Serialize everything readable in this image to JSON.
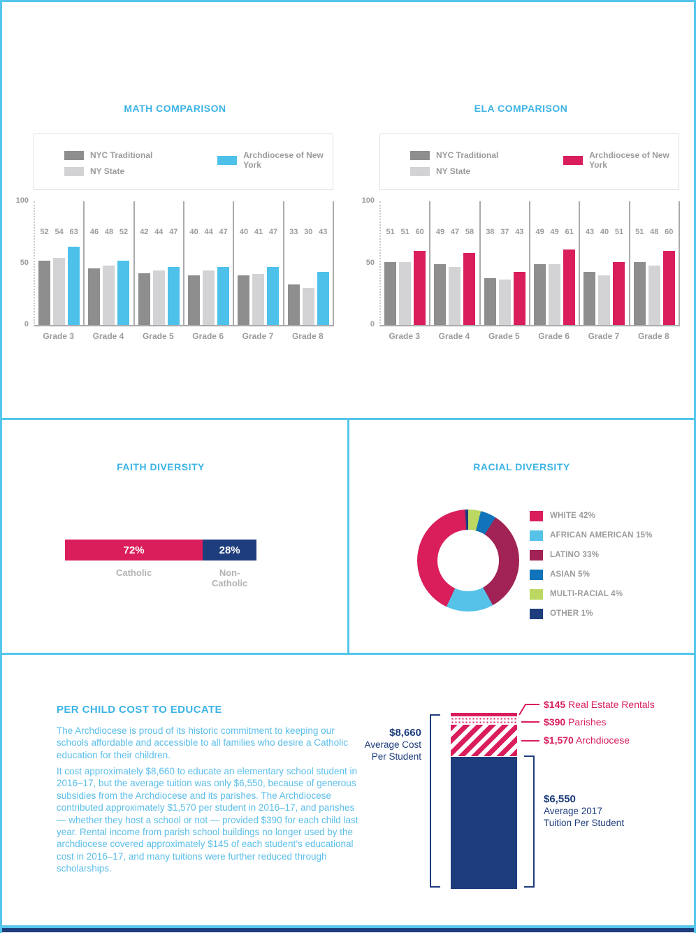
{
  "palette": {
    "border_blue": "#56C5EC",
    "title_blue": "#3CB4E5",
    "body_blue": "#5BBEE9",
    "pink": "#D91E5B",
    "navy": "#1E3D7D",
    "sky_blue": "#4EC1EB",
    "dark_gray": "#8E8E8E",
    "light_gray": "#D3D3D5",
    "label_gray": "#9B9B9B"
  },
  "chart_data": [
    {
      "id": "math",
      "type": "bar",
      "title": "MATH COMPARISON",
      "categories": [
        "Grade 3",
        "Grade 4",
        "Grade 5",
        "Grade 6",
        "Grade 7",
        "Grade 8"
      ],
      "series": [
        {
          "name": "NYC Traditional",
          "color": "#8E8E8E",
          "values": [
            52,
            46,
            42,
            40,
            40,
            33
          ]
        },
        {
          "name": "NY State",
          "color": "#D3D3D5",
          "values": [
            54,
            48,
            44,
            44,
            41,
            30
          ]
        },
        {
          "name": "Archdiocese of New York",
          "color": "#4EC1EB",
          "values": [
            63,
            52,
            47,
            47,
            47,
            43
          ]
        }
      ],
      "ylim": [
        0,
        100
      ],
      "yticks": [
        0,
        50,
        100
      ],
      "legend_position": "top",
      "grid": false
    },
    {
      "id": "ela",
      "type": "bar",
      "title": "ELA COMPARISON",
      "categories": [
        "Grade 3",
        "Grade 4",
        "Grade 5",
        "Grade 6",
        "Grade 7",
        "Grade 8"
      ],
      "series": [
        {
          "name": "NYC Traditional",
          "color": "#8E8E8E",
          "values": [
            51,
            49,
            38,
            49,
            43,
            51
          ]
        },
        {
          "name": "NY State",
          "color": "#D3D3D5",
          "values": [
            51,
            47,
            37,
            49,
            40,
            48
          ]
        },
        {
          "name": "Archdiocese of New York",
          "color": "#D91E5B",
          "values": [
            60,
            58,
            43,
            61,
            51,
            60
          ]
        }
      ],
      "ylim": [
        0,
        100
      ],
      "yticks": [
        0,
        50,
        100
      ],
      "legend_position": "top",
      "grid": false
    },
    {
      "id": "faith",
      "type": "bar",
      "variant": "stacked-horizontal",
      "title": "FAITH DIVERSITY",
      "segments": [
        {
          "label": "Catholic",
          "value": 72,
          "display": "72%",
          "color": "#D91E5B"
        },
        {
          "label": "Non-Catholic",
          "value": 28,
          "display": "28%",
          "color": "#1E3D7D"
        }
      ]
    },
    {
      "id": "racial",
      "type": "pie",
      "variant": "donut",
      "title": "RACIAL DIVERSITY",
      "slices": [
        {
          "label": "WHITE",
          "value": 42,
          "display": "WHITE 42%",
          "color": "#D91E5B"
        },
        {
          "label": "AFRICAN AMERICAN",
          "value": 15,
          "display": "AFRICAN AMERICAN 15%",
          "color": "#56C2E8"
        },
        {
          "label": "LATINO",
          "value": 33,
          "display": "LATINO 33%",
          "color": "#A12355"
        },
        {
          "label": "ASIAN",
          "value": 5,
          "display": "ASIAN 5%",
          "color": "#1173B9"
        },
        {
          "label": "MULTI-RACIAL",
          "value": 4,
          "display": "MULTI-RACIAL 4%",
          "color": "#BCD863"
        },
        {
          "label": "OTHER",
          "value": 1,
          "display": "OTHER 1%",
          "color": "#1E3D7D"
        }
      ],
      "clockwise_order_from_top": [
        "MULTI-RACIAL",
        "ASIAN",
        "LATINO",
        "AFRICAN AMERICAN",
        "WHITE",
        "OTHER"
      ],
      "legend_position": "right"
    },
    {
      "id": "cost",
      "type": "bar",
      "variant": "stacked-vertical",
      "title": "PER CHILD COST TO EDUCATE",
      "total_value": 8660,
      "segments": [
        {
          "label": "Real Estate Rentals",
          "display": "$145",
          "value": 145,
          "pattern": "solid",
          "color": "#D91E5B"
        },
        {
          "label": "Parishes",
          "display": "$390",
          "value": 390,
          "pattern": "dots",
          "color": "#D91E5B"
        },
        {
          "label": "Archdiocese",
          "display": "$1,570",
          "value": 1570,
          "pattern": "stripes",
          "color": "#D91E5B"
        },
        {
          "label": "Average 2017 Tuition Per Student",
          "display": "$6,550",
          "value": 6550,
          "pattern": "solid",
          "color": "#1E3D7D"
        }
      ],
      "brackets": {
        "left": {
          "amount": "$8,660",
          "lines": [
            "Average Cost",
            "Per Student"
          ]
        },
        "right": {
          "amount": "$6,550",
          "lines": [
            "Average 2017",
            "Tuition Per Student"
          ]
        }
      }
    }
  ],
  "cost_text": {
    "paragraphs": [
      "The Archdiocese is proud of its historic commitment to keeping our schools affordable and accessible to all families who desire a Catholic education for their children.",
      "It cost approximately $8,660 to educate an elementary school student in 2016–17, but the average tuition was only $6,550, because of generous subsidies from the Archdiocese and its parishes. The Archdiocese contributed approximately $1,570 per student in 2016–17, and parishes — whether they host a school or not — provided $390 for each child last year. Rental income from parish school buildings no longer used by the archdiocese covered approximately $145 of each student’s educational cost in 2016–17, and many tuitions were further reduced through scholarships."
    ]
  }
}
